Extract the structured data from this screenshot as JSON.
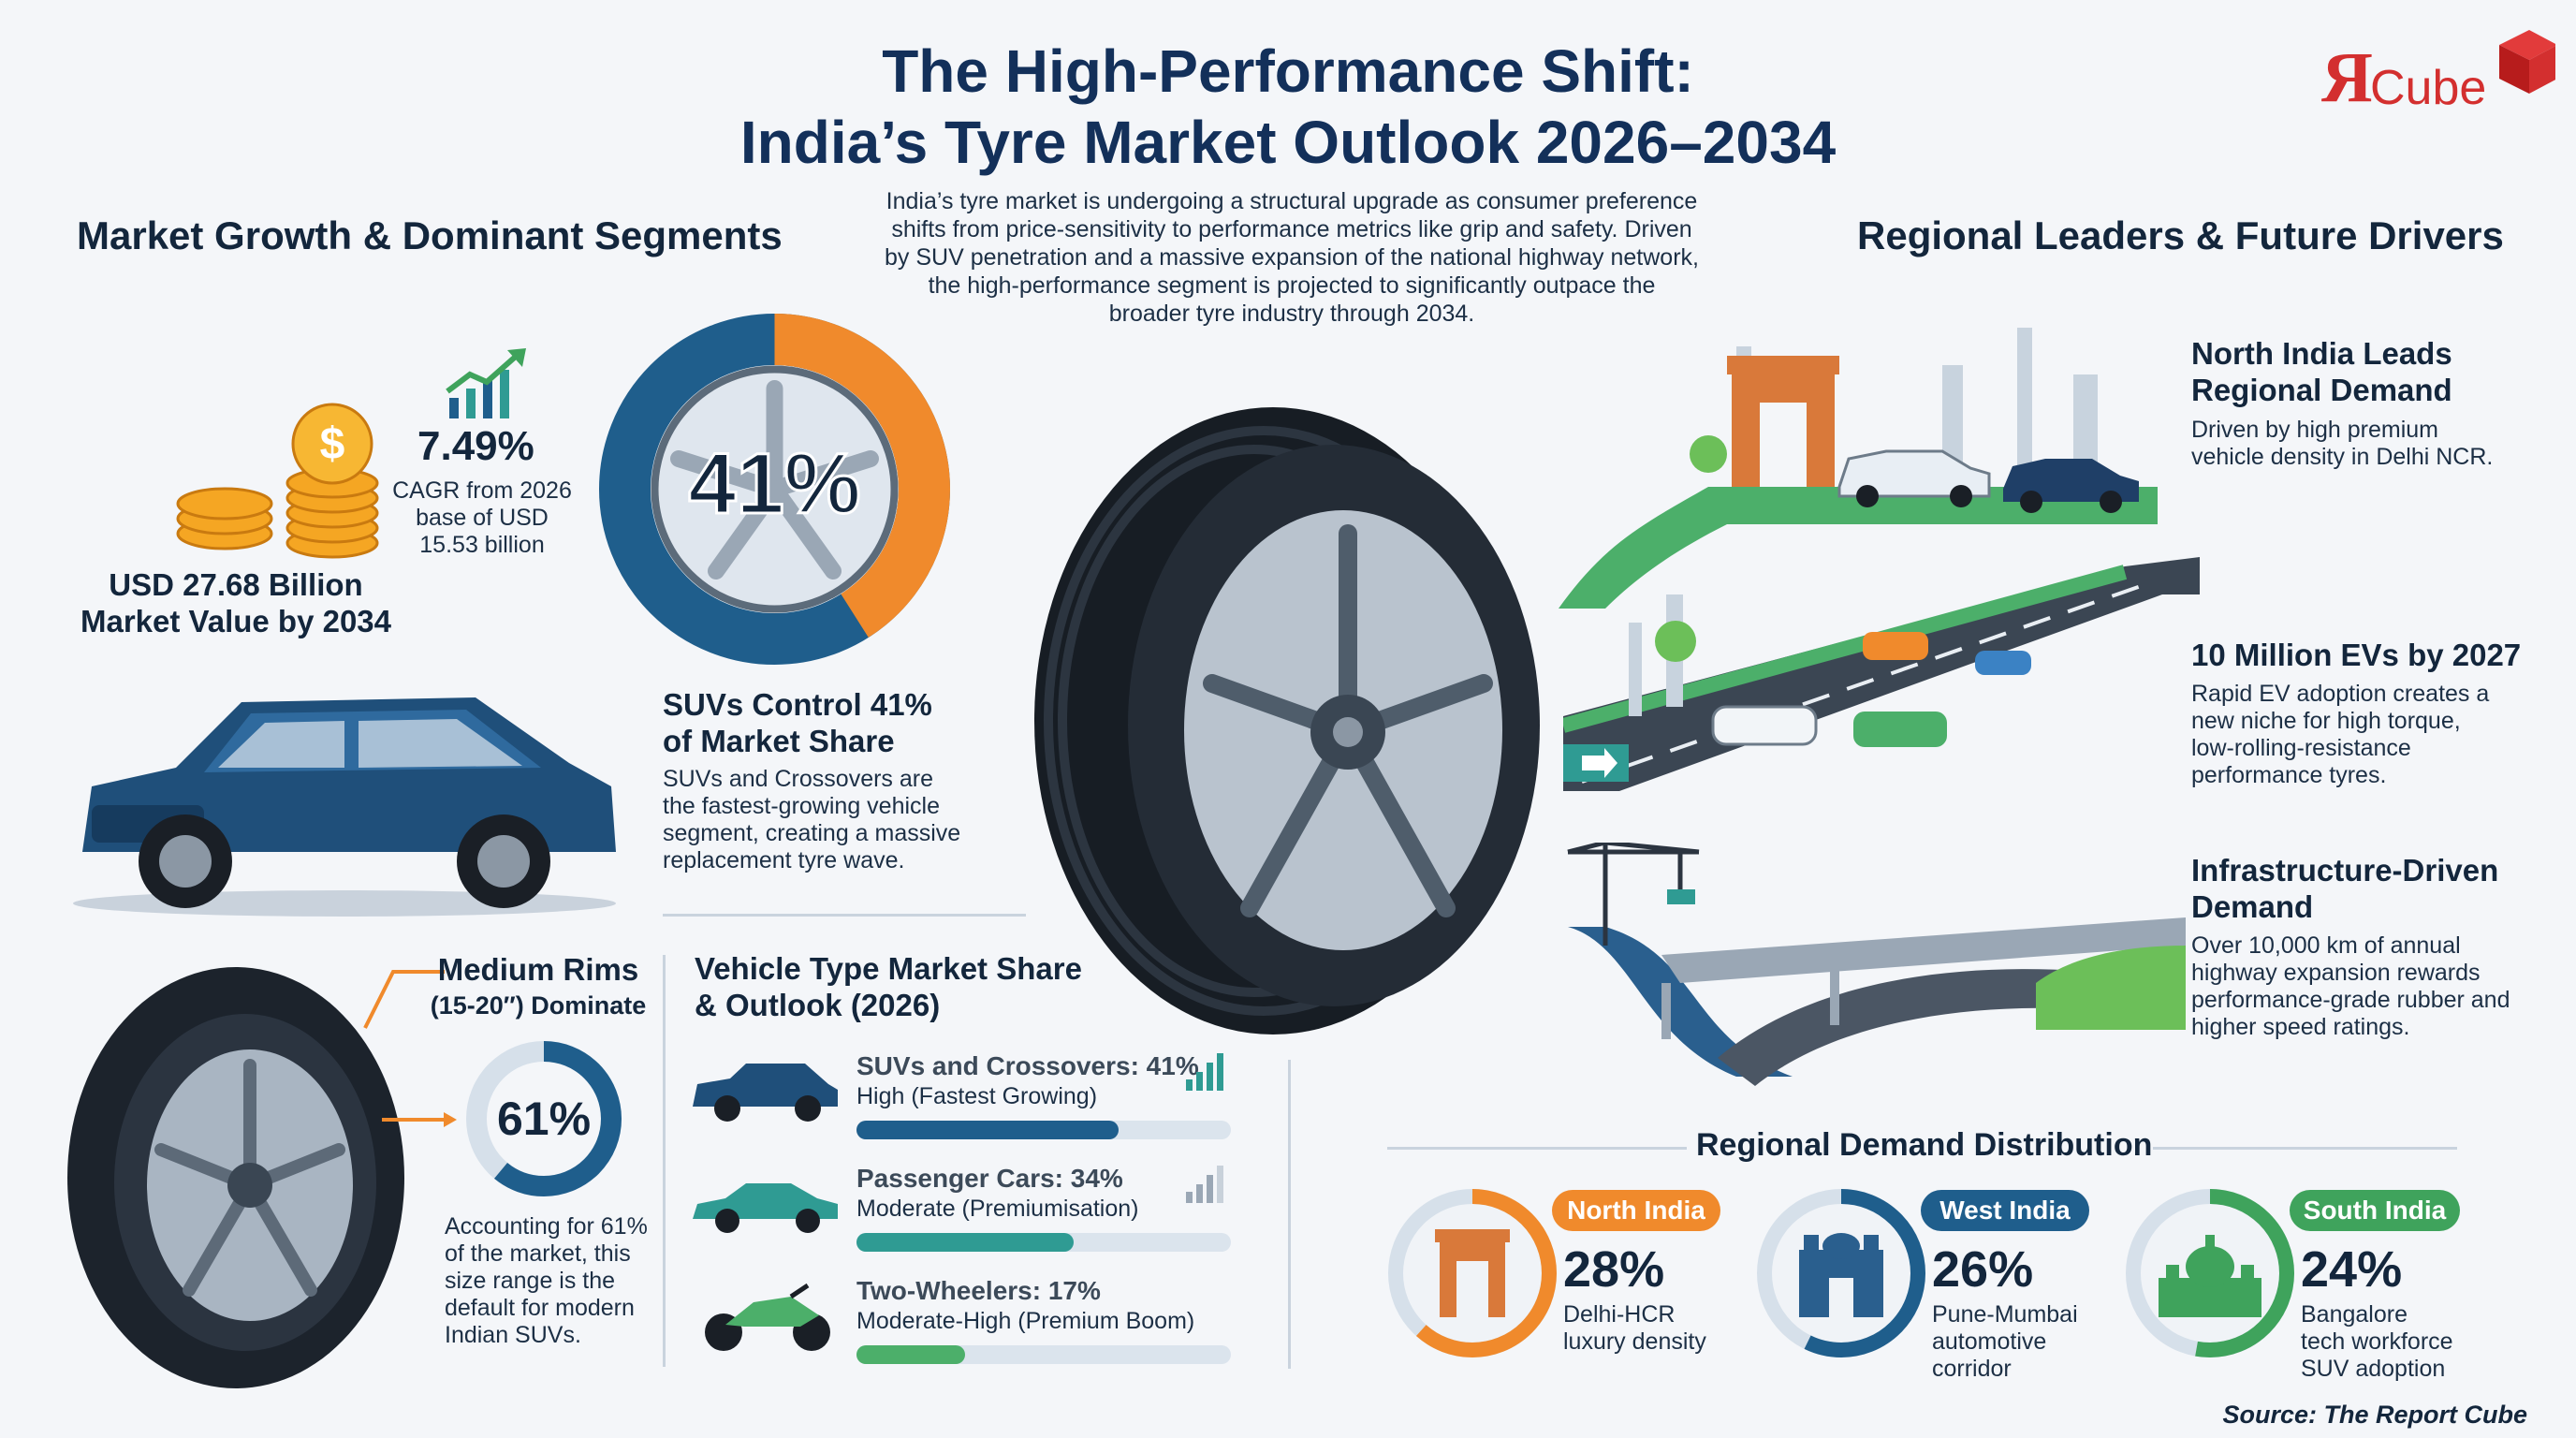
{
  "header": {
    "title_line1": "The High-Performance Shift:",
    "title_line2": "India’s Tyre Market Outlook 2026–2034",
    "logo_text": "Cube",
    "logo_letter": "Я"
  },
  "intro": {
    "line1": "India’s tyre market is undergoing a structural upgrade as consumer preference",
    "line2": "shifts from price-sensitivity to performance metrics like grip and safety. Driven",
    "line3": "by SUV penetration and a massive expansion of the national highway network,",
    "line4": "the high-performance segment is projected to significantly outpace the",
    "line5": "broader tyre industry through 2034."
  },
  "left": {
    "section_title": "Market Growth & Dominant Segments",
    "cagr_value": "7.49%",
    "cagr_line1": "CAGR from 2026",
    "cagr_line2": "base of USD",
    "cagr_line3": "15.53 billion",
    "market_value_line1": "USD 27.68 Billion",
    "market_value_line2": "Market Value by 2034",
    "suv_donut_label": "41%",
    "suv_donut_fraction": 0.41,
    "suv_title_line1": "SUVs Control 41%",
    "suv_title_line2": "of Market Share",
    "suv_body_line1": "SUVs and Crossovers are",
    "suv_body_line2": "the fastest-growing vehicle",
    "suv_body_line3": "segment, creating a massive",
    "suv_body_line4": "replacement tyre wave.",
    "rims_title_line1": "Medium Rims",
    "rims_title_line2": "(15-20″) Dominate",
    "rims_donut_label": "61%",
    "rims_donut_fraction": 0.61,
    "rims_body_line1": "Accounting for 61%",
    "rims_body_line2": "of the market, this",
    "rims_body_line3": "size range is the",
    "rims_body_line4": "default for modern",
    "rims_body_line5": "Indian SUVs."
  },
  "vehicle_share": {
    "title_line1": "Vehicle Type Market Share",
    "title_line2": "& Outlook (2026)",
    "items": [
      {
        "name": "SUVs and Crossovers: 41%",
        "outlook": "High (Fastest Growing)",
        "share": 0.41,
        "color": "#1f5e8c"
      },
      {
        "name": "Passenger Cars: 34%",
        "outlook": "Moderate (Premiumisation)",
        "share": 0.34,
        "color": "#2f9b93"
      },
      {
        "name": "Two-Wheelers: 17%",
        "outlook": "Moderate-High (Premium Boom)",
        "share": 0.17,
        "color": "#4caf6a"
      }
    ]
  },
  "right": {
    "section_title": "Regional Leaders & Future Drivers",
    "driver1_title_line1": "North India Leads",
    "driver1_title_line2": "Regional Demand",
    "driver1_body_line1": "Driven by high premium",
    "driver1_body_line2": "vehicle density in Delhi NCR.",
    "driver2_title": "10 Million EVs by 2027",
    "driver2_body_line1": "Rapid EV adoption creates a",
    "driver2_body_line2": "new niche for high torque,",
    "driver2_body_line3": "low-rolling-resistance",
    "driver2_body_line4": "performance tyres.",
    "driver3_title_line1": "Infrastructure-Driven",
    "driver3_title_line2": "Demand",
    "driver3_body_line1": "Over 10,000 km of annual",
    "driver3_body_line2": "highway expansion rewards",
    "driver3_body_line3": "performance-grade rubber and",
    "driver3_body_line4": "higher speed ratings."
  },
  "regional": {
    "title": "Regional Demand Distribution",
    "regions": [
      {
        "name": "North India",
        "value": "28%",
        "fraction": 0.28,
        "line1": "Delhi-HCR",
        "line2": "luxury density",
        "line3": "",
        "color": "#f08a2c"
      },
      {
        "name": "West India",
        "value": "26%",
        "fraction": 0.26,
        "line1": "Pune-Mumbai",
        "line2": "automotive",
        "line3": "corridor",
        "color": "#1f5e8c"
      },
      {
        "name": "South India",
        "value": "24%",
        "fraction": 0.24,
        "line1": "Bangalore",
        "line2": "tech workforce",
        "line3": "SUV adoption",
        "color": "#3fa35c"
      }
    ]
  },
  "footer": {
    "source": "Source: The Report Cube"
  }
}
